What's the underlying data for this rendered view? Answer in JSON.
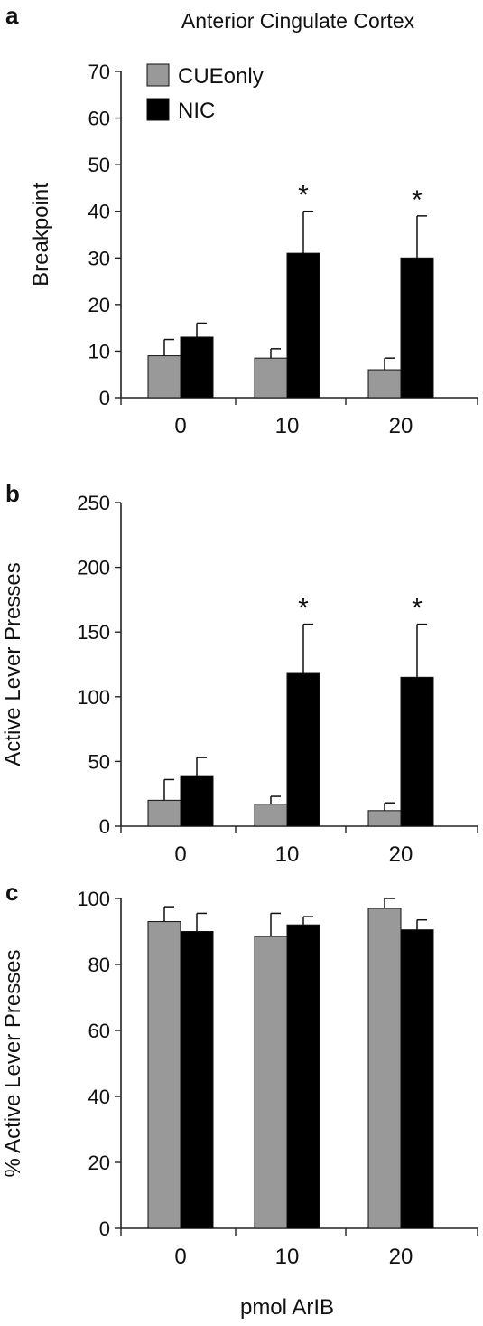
{
  "title": "Anterior Cingulate Cortex",
  "colors": {
    "CUEonly": "#999999",
    "NIC": "#000000"
  },
  "legend": {
    "items": [
      "CUEonly",
      "NIC"
    ],
    "placement": "top-left of panel a"
  },
  "xlabel": "pmol ArIB",
  "chart_data": [
    {
      "panel": "a",
      "type": "bar",
      "title": "Anterior Cingulate Cortex",
      "categories": [
        "0",
        "10",
        "20"
      ],
      "ylabel": "Breakpoint",
      "xlabel": "",
      "ylim": [
        0,
        70
      ],
      "yticks": [
        0,
        10,
        20,
        30,
        40,
        50,
        60,
        70
      ],
      "series": [
        {
          "name": "CUEonly",
          "values": [
            9,
            8.5,
            6
          ],
          "errors": [
            3.5,
            2,
            2.5
          ]
        },
        {
          "name": "NIC",
          "values": [
            13,
            31,
            30
          ],
          "errors": [
            3,
            9,
            9
          ]
        }
      ],
      "significance": [
        "",
        "*",
        "*"
      ],
      "grid": false
    },
    {
      "panel": "b",
      "type": "bar",
      "categories": [
        "0",
        "10",
        "20"
      ],
      "ylabel": "Active Lever Presses",
      "xlabel": "",
      "ylim": [
        0,
        250
      ],
      "yticks": [
        0,
        50,
        100,
        150,
        200,
        250
      ],
      "series": [
        {
          "name": "CUEonly",
          "values": [
            20,
            17,
            12
          ],
          "errors": [
            16,
            6,
            6
          ]
        },
        {
          "name": "NIC",
          "values": [
            39,
            118,
            115
          ],
          "errors": [
            14,
            38,
            41
          ]
        }
      ],
      "significance": [
        "",
        "*",
        "*"
      ],
      "grid": false
    },
    {
      "panel": "c",
      "type": "bar",
      "categories": [
        "0",
        "10",
        "20"
      ],
      "ylabel": "% Active Lever Presses",
      "xlabel": "pmol ArIB",
      "ylim": [
        0,
        100
      ],
      "yticks": [
        0,
        20,
        40,
        60,
        80,
        100
      ],
      "series": [
        {
          "name": "CUEonly",
          "values": [
            93,
            88.5,
            97
          ],
          "errors": [
            4.5,
            7,
            3
          ]
        },
        {
          "name": "NIC",
          "values": [
            90,
            92,
            90.5
          ],
          "errors": [
            5.5,
            2.5,
            3
          ]
        }
      ],
      "significance": [
        "",
        "",
        ""
      ],
      "grid": false
    }
  ]
}
